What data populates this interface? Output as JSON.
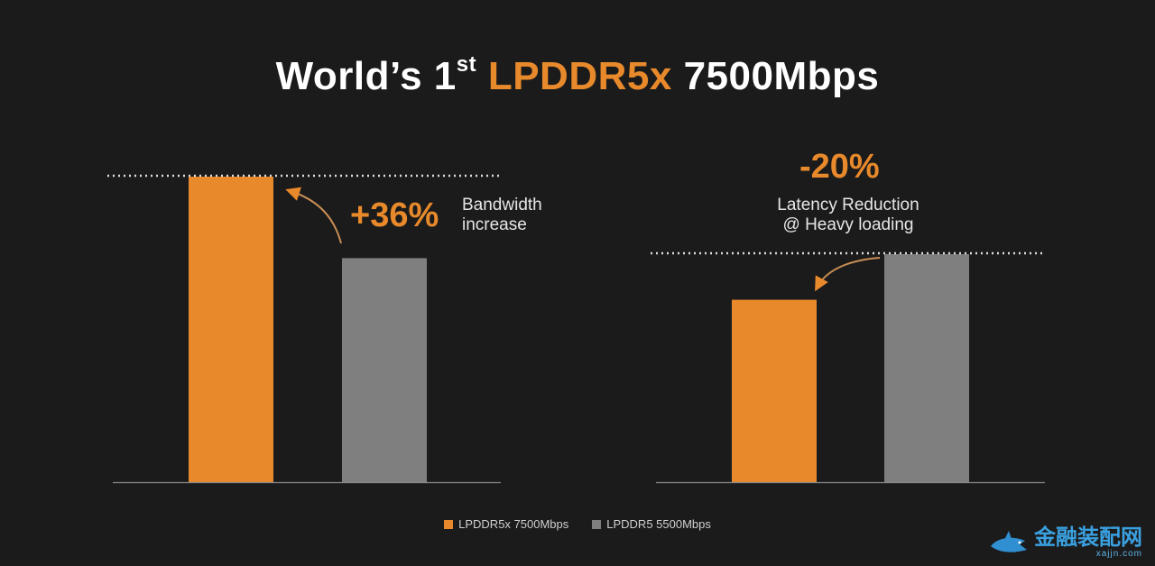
{
  "title": {
    "prefix": "World’s 1",
    "superscript": "st",
    "accent": "LPDDR5x",
    "suffix": "7500Mbps"
  },
  "colors": {
    "background": "#1b1b1b",
    "accent": "#e8892b",
    "gray_bar": "#7f7f7f",
    "reference_line": "#dddddd"
  },
  "chart_data": [
    {
      "type": "bar",
      "metric": "Bandwidth",
      "categories": [
        "LPDDR5x 7500Mbps",
        "LPDDR5 5500Mbps"
      ],
      "values": [
        7500,
        5500
      ],
      "ylim": [
        0,
        7500
      ],
      "annotation": {
        "value": "+36%",
        "text_lines": [
          "Bandwidth",
          "increase"
        ]
      },
      "reference_line": "dotted at top of LPDDR5x bar"
    },
    {
      "type": "bar",
      "metric": "Latency",
      "categories": [
        "LPDDR5x 7500Mbps",
        "LPDDR5 5500Mbps"
      ],
      "values": [
        80,
        100
      ],
      "ylim": [
        0,
        100
      ],
      "annotation": {
        "value": "-20%",
        "text_lines": [
          "Latency Reduction",
          "@ Heavy loading"
        ]
      },
      "reference_line": "dotted at top of LPDDR5 bar"
    }
  ],
  "legend": [
    {
      "label": "LPDDR5x 7500Mbps",
      "color": "#e8892b"
    },
    {
      "label": "LPDDR5 5500Mbps",
      "color": "#7f7f7f"
    }
  ],
  "watermark": {
    "main": "金融装配网",
    "url": "xajjn.com"
  }
}
